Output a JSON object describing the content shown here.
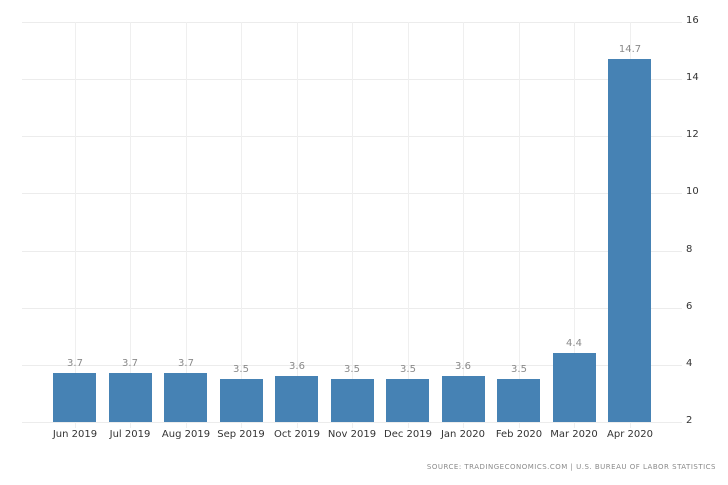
{
  "chart_data": {
    "type": "bar",
    "title": "",
    "xlabel": "",
    "ylabel": "",
    "categories": [
      "Jun 2019",
      "Jul 2019",
      "Aug 2019",
      "Sep 2019",
      "Oct 2019",
      "Nov 2019",
      "Dec 2019",
      "Jan 2020",
      "Feb 2020",
      "Mar 2020",
      "Apr 2020"
    ],
    "values": [
      3.7,
      3.7,
      3.7,
      3.5,
      3.6,
      3.5,
      3.5,
      3.6,
      3.5,
      4.4,
      14.7
    ],
    "value_labels": [
      "3.7",
      "3.7",
      "3.7",
      "3.5",
      "3.6",
      "3.5",
      "3.5",
      "3.6",
      "3.5",
      "4.4",
      "14.7"
    ],
    "ylim": [
      2,
      16
    ],
    "yticks": [
      2,
      4,
      6,
      8,
      10,
      12,
      14,
      16
    ],
    "y_axis_position": "right",
    "grid": true,
    "legend": null,
    "bar_color": "#4682b4"
  },
  "source": "SOURCE: TRADINGECONOMICS.COM | U.S. BUREAU OF LABOR STATISTICS"
}
